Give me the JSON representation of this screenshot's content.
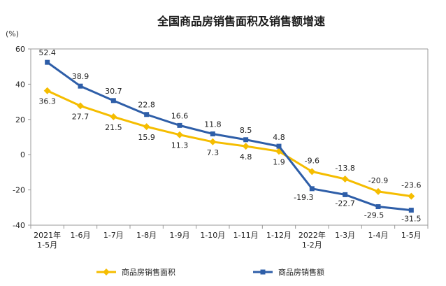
{
  "chart_data": {
    "type": "line",
    "title": "全国商品房销售面积及销售额增速",
    "ylabel": "(%)",
    "ylim": [
      -40,
      60
    ],
    "yticks": [
      60,
      40,
      20,
      0,
      -20,
      -40
    ],
    "categories": [
      [
        "2021年",
        "1-5月"
      ],
      [
        "1-6月"
      ],
      [
        "1-7月"
      ],
      [
        "1-8月"
      ],
      [
        "1-9月"
      ],
      [
        "1-10月"
      ],
      [
        "1-11月"
      ],
      [
        "1-12月"
      ],
      [
        "2022年",
        "1-2月"
      ],
      [
        "1-3月"
      ],
      [
        "1-4月"
      ],
      [
        "1-5月"
      ]
    ],
    "series": [
      {
        "name": "商品房销售面积",
        "color": "#F5BD00",
        "marker": "diamond",
        "values": [
          36.3,
          27.7,
          21.5,
          15.9,
          11.3,
          7.3,
          4.8,
          1.9,
          -9.6,
          -13.8,
          -20.9,
          -23.6
        ],
        "labels": [
          "36.3",
          "27.7",
          "21.5",
          "15.9",
          "11.3",
          "7.3",
          "4.8",
          "1.9",
          "-9.6",
          "-13.8",
          "-20.9",
          "-23.6"
        ]
      },
      {
        "name": "商品房销售额",
        "color": "#2E5EA8",
        "marker": "square",
        "values": [
          52.4,
          38.9,
          30.7,
          22.8,
          16.6,
          11.8,
          8.5,
          4.8,
          -19.3,
          -22.7,
          -29.5,
          -31.5
        ],
        "labels": [
          "52.4",
          "38.9",
          "30.7",
          "22.8",
          "16.6",
          "11.8",
          "8.5",
          "4.8",
          "-19.3",
          "-22.7",
          "-29.5",
          "-31.5"
        ]
      }
    ],
    "legend_position": "bottom",
    "grid": false
  }
}
